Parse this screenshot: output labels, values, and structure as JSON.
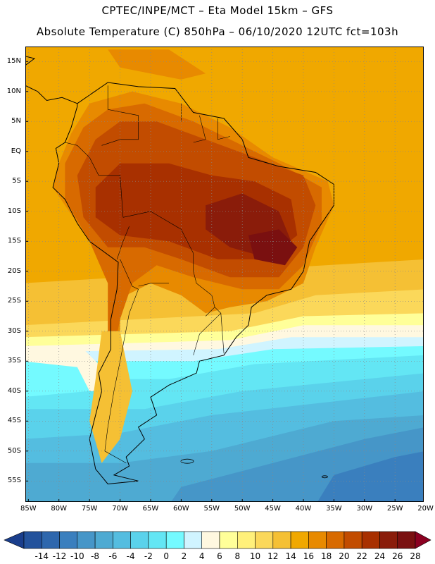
{
  "title": {
    "line1": "CPTEC/INPE/MCT –  Eta Model 15km – GFS",
    "line2": "Absolute Temperature (C) 850hPa – 06/10/2020 12UTC fct=103h"
  },
  "map": {
    "lat_labels": [
      "15N",
      "10N",
      "5N",
      "EQ",
      "5S",
      "10S",
      "15S",
      "20S",
      "25S",
      "30S",
      "35S",
      "40S",
      "45S",
      "50S",
      "55S"
    ],
    "lat_values": [
      15,
      10,
      5,
      0,
      -5,
      -10,
      -15,
      -20,
      -25,
      -30,
      -35,
      -40,
      -45,
      -50,
      -55
    ],
    "lon_labels": [
      "85W",
      "80W",
      "75W",
      "70W",
      "65W",
      "60W",
      "55W",
      "50W",
      "45W",
      "40W",
      "35W",
      "30W",
      "25W",
      "20W"
    ],
    "lon_values": [
      -85,
      -80,
      -75,
      -70,
      -65,
      -60,
      -55,
      -50,
      -45,
      -40,
      -35,
      -30,
      -25,
      -20
    ],
    "extent": {
      "lon_min": -85.5,
      "lon_max": -20.3,
      "lat_min": -58.5,
      "lat_max": 17.5
    }
  },
  "colorbar": {
    "labels": [
      "-14",
      "-12",
      "-10",
      "-8",
      "-6",
      "-4",
      "-2",
      "0",
      "2",
      "4",
      "6",
      "8",
      "10",
      "12",
      "14",
      "16",
      "18",
      "20",
      "22",
      "24",
      "26",
      "28"
    ],
    "colors": [
      "#1a3e8c",
      "#23529c",
      "#2e67ad",
      "#3a7fbe",
      "#4696c8",
      "#4eaad2",
      "#54bde0",
      "#5ad2eb",
      "#63e6f4",
      "#74faff",
      "#d0f4ff",
      "#fff8e0",
      "#ffff99",
      "#fff07a",
      "#fbd85a",
      "#f5c034",
      "#f0a800",
      "#e88a00",
      "#d86a00",
      "#c24c00",
      "#a83000",
      "#8a1c0a",
      "#7a1010",
      "#8b0021"
    ]
  },
  "fields": {
    "palette": {
      "t6": "#d0f4ff",
      "t8": "#fff8e0",
      "t10": "#ffff99",
      "t12": "#fff07a",
      "t14": "#fbd85a",
      "t16": "#f5c034",
      "t18": "#f0a800",
      "t20": "#e88a00",
      "t22": "#d86a00",
      "t24": "#c24c00",
      "t26": "#a83000",
      "t28": "#8a1c0a",
      "t30": "#7a1010",
      "c0": "#5ad2eb",
      "c2": "#63e6f4",
      "c4": "#74faff",
      "cm2": "#54bde0",
      "cm4": "#4eaad2",
      "cm6": "#4696c8",
      "cm8": "#3a7fbe",
      "cm10": "#2e67ad"
    }
  }
}
